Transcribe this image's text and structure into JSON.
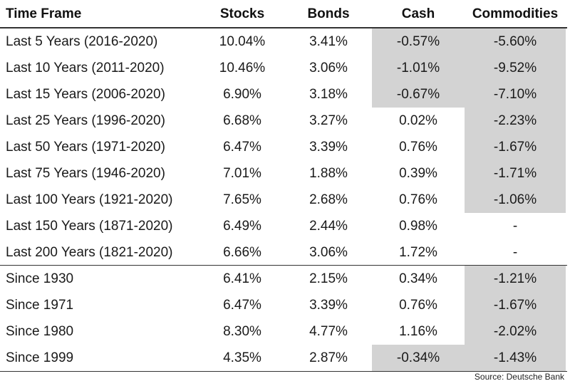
{
  "chart_data": {
    "type": "table",
    "columns": [
      "Time Frame",
      "Stocks",
      "Bonds",
      "Cash",
      "Commodities"
    ],
    "rows": [
      {
        "label": "Last 5 Years (2016-2020)",
        "values": [
          "10.04%",
          "3.41%",
          "-0.57%",
          "-5.60%"
        ],
        "shaded": [
          false,
          false,
          true,
          true
        ]
      },
      {
        "label": "Last 10 Years (2011-2020)",
        "values": [
          "10.46%",
          "3.06%",
          "-1.01%",
          "-9.52%"
        ],
        "shaded": [
          false,
          false,
          true,
          true
        ]
      },
      {
        "label": "Last 15 Years (2006-2020)",
        "values": [
          "6.90%",
          "3.18%",
          "-0.67%",
          "-7.10%"
        ],
        "shaded": [
          false,
          false,
          true,
          true
        ]
      },
      {
        "label": "Last 25 Years (1996-2020)",
        "values": [
          "6.68%",
          "3.27%",
          "0.02%",
          "-2.23%"
        ],
        "shaded": [
          false,
          false,
          false,
          true
        ]
      },
      {
        "label": "Last 50 Years (1971-2020)",
        "values": [
          "6.47%",
          "3.39%",
          "0.76%",
          "-1.67%"
        ],
        "shaded": [
          false,
          false,
          false,
          true
        ]
      },
      {
        "label": "Last 75 Years (1946-2020)",
        "values": [
          "7.01%",
          "1.88%",
          "0.39%",
          "-1.71%"
        ],
        "shaded": [
          false,
          false,
          false,
          true
        ]
      },
      {
        "label": "Last 100 Years (1921-2020)",
        "values": [
          "7.65%",
          "2.68%",
          "0.76%",
          "-1.06%"
        ],
        "shaded": [
          false,
          false,
          false,
          true
        ]
      },
      {
        "label": "Last 150 Years (1871-2020)",
        "values": [
          "6.49%",
          "2.44%",
          "0.98%",
          "-"
        ],
        "shaded": [
          false,
          false,
          false,
          false
        ]
      },
      {
        "label": "Last 200 Years (1821-2020)",
        "values": [
          "6.66%",
          "3.06%",
          "1.72%",
          "-"
        ],
        "shaded": [
          false,
          false,
          false,
          false
        ]
      },
      {
        "label": "Since 1930",
        "values": [
          "6.41%",
          "2.15%",
          "0.34%",
          "-1.21%"
        ],
        "shaded": [
          false,
          false,
          false,
          true
        ]
      },
      {
        "label": "Since 1971",
        "values": [
          "6.47%",
          "3.39%",
          "0.76%",
          "-1.67%"
        ],
        "shaded": [
          false,
          false,
          false,
          true
        ]
      },
      {
        "label": "Since 1980",
        "values": [
          "8.30%",
          "4.77%",
          "1.16%",
          "-2.02%"
        ],
        "shaded": [
          false,
          false,
          false,
          true
        ]
      },
      {
        "label": "Since 1999",
        "values": [
          "4.35%",
          "2.87%",
          "-0.34%",
          "-1.43%"
        ],
        "shaded": [
          false,
          false,
          true,
          true
        ]
      }
    ],
    "highlight_color": "#d3d3d3"
  },
  "source": "Source: Deutsche Bank"
}
